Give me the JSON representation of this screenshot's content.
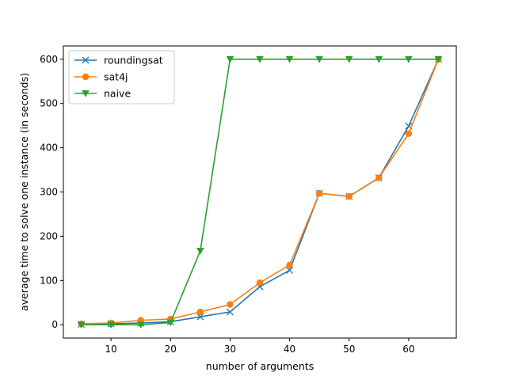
{
  "chart_data": {
    "type": "line",
    "title": "",
    "xlabel": "number of arguments",
    "ylabel": "average time to solve one instance (in seconds)",
    "xlim": [
      2,
      68
    ],
    "ylim": [
      -30,
      630
    ],
    "x_ticks": [
      10,
      20,
      30,
      40,
      50,
      60
    ],
    "y_ticks": [
      0,
      100,
      200,
      300,
      400,
      500,
      600
    ],
    "grid": false,
    "legend_position": "top-left",
    "x": [
      5,
      10,
      15,
      20,
      25,
      30,
      35,
      40,
      45,
      50,
      55,
      60,
      65
    ],
    "series": [
      {
        "name": "roundingsat",
        "color": "#1f77b4",
        "marker": "x",
        "values": [
          1,
          2,
          4,
          7,
          18,
          29,
          86,
          123,
          297,
          290,
          332,
          449,
          600
        ]
      },
      {
        "name": "sat4j",
        "color": "#ff7f0e",
        "marker": "circle",
        "values": [
          2,
          4,
          10,
          13,
          29,
          46,
          95,
          135,
          297,
          290,
          332,
          432,
          600
        ]
      },
      {
        "name": "naive",
        "color": "#2ca02c",
        "marker": "triangle-down",
        "values": [
          0,
          0,
          0,
          5,
          167,
          600,
          600,
          600,
          600,
          600,
          600,
          600,
          600
        ]
      }
    ]
  }
}
